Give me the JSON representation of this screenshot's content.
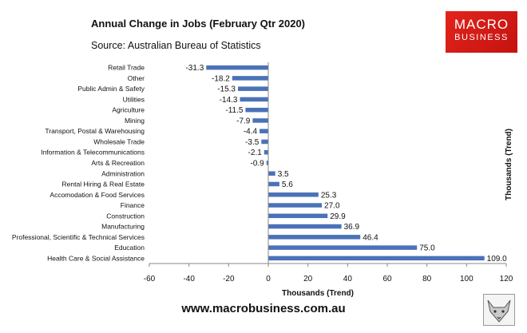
{
  "header": {
    "title": "Annual Change in Jobs (February Qtr 2020)",
    "subtitle": "Source: Australian Bureau of Statistics"
  },
  "logo": {
    "line1": "MACRO",
    "line2": "BUSINESS"
  },
  "footer": {
    "url": "www.macrobusiness.com.au"
  },
  "colors": {
    "bar": "#4a72b8",
    "logo": "#d31c16",
    "axis": "#888888"
  },
  "chart_data": {
    "type": "bar",
    "orientation": "horizontal",
    "xlabel": "Thousands (Trend)",
    "ylabel": "Thousands (Trend)",
    "xlim": [
      -60,
      120
    ],
    "xticks": [
      -60,
      -40,
      -20,
      0,
      20,
      40,
      60,
      80,
      100,
      120
    ],
    "grid": false,
    "categories": [
      "Retail Trade",
      "Other",
      "Public Admin & Safety",
      "Utilities",
      "Agriculture",
      "Mining",
      "Transport, Postal & Warehousing",
      "Wholesale Trade",
      "Information & Telecommunications",
      "Arts & Recreation",
      "Administration",
      "Rental Hiring & Real Estate",
      "Accomodation & Food Services",
      "Finance",
      "Construction",
      "Manufacturing",
      "Professional, Scientific & Technical Services",
      "Education",
      "Health Care & Social Assistance"
    ],
    "values": [
      -31.3,
      -18.2,
      -15.3,
      -14.3,
      -11.5,
      -7.9,
      -4.4,
      -3.5,
      -2.1,
      -0.9,
      3.5,
      5.6,
      25.3,
      27.0,
      29.9,
      36.9,
      46.4,
      75.0,
      109.0
    ],
    "labels": [
      "-31.3",
      "-18.2",
      "-15.3",
      "-14.3",
      "-11.5",
      "-7.9",
      "-4.4",
      "-3.5",
      "-2.1",
      "-0.9",
      "3.5",
      "5.6",
      "25.3",
      "27.0",
      "29.9",
      "36.9",
      "46.4",
      "75.0",
      "109.0"
    ]
  }
}
